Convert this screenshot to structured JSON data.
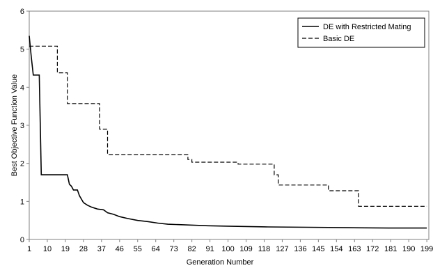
{
  "chart_data": {
    "type": "line",
    "xlabel": "Generation Number",
    "ylabel": "Best Objective Function Value",
    "xlim": [
      1,
      200
    ],
    "ylim": [
      0,
      6
    ],
    "yticks": [
      0,
      1,
      2,
      3,
      4,
      5,
      6
    ],
    "xticks": [
      1,
      10,
      19,
      28,
      37,
      46,
      55,
      64,
      73,
      82,
      91,
      100,
      109,
      118,
      127,
      136,
      145,
      154,
      163,
      172,
      181,
      190,
      199
    ],
    "grid": false,
    "legend_position": "top-right",
    "series": [
      {
        "name": "DE with Restricted Mating",
        "style": "solid",
        "color": "#000000",
        "points": [
          [
            1,
            5.35
          ],
          [
            2,
            4.8
          ],
          [
            3,
            4.32
          ],
          [
            6,
            4.32
          ],
          [
            7,
            1.7
          ],
          [
            20,
            1.7
          ],
          [
            21,
            1.45
          ],
          [
            22,
            1.4
          ],
          [
            23,
            1.3
          ],
          [
            25,
            1.3
          ],
          [
            26,
            1.15
          ],
          [
            28,
            0.97
          ],
          [
            30,
            0.9
          ],
          [
            32,
            0.85
          ],
          [
            35,
            0.8
          ],
          [
            38,
            0.78
          ],
          [
            40,
            0.7
          ],
          [
            43,
            0.66
          ],
          [
            46,
            0.6
          ],
          [
            50,
            0.55
          ],
          [
            55,
            0.5
          ],
          [
            60,
            0.47
          ],
          [
            65,
            0.43
          ],
          [
            70,
            0.4
          ],
          [
            80,
            0.38
          ],
          [
            90,
            0.36
          ],
          [
            100,
            0.35
          ],
          [
            120,
            0.33
          ],
          [
            140,
            0.32
          ],
          [
            160,
            0.31
          ],
          [
            180,
            0.3
          ],
          [
            199,
            0.3
          ]
        ]
      },
      {
        "name": "Basic DE",
        "style": "dashed",
        "color": "#000000",
        "points": [
          [
            1,
            5.08
          ],
          [
            15,
            5.08
          ],
          [
            15,
            4.38
          ],
          [
            20,
            4.38
          ],
          [
            20,
            3.57
          ],
          [
            36,
            3.57
          ],
          [
            36,
            2.9
          ],
          [
            40,
            2.9
          ],
          [
            40,
            2.23
          ],
          [
            80,
            2.23
          ],
          [
            80,
            2.1
          ],
          [
            82,
            2.1
          ],
          [
            82,
            2.03
          ],
          [
            105,
            2.03
          ],
          [
            105,
            1.98
          ],
          [
            123,
            1.98
          ],
          [
            123,
            1.7
          ],
          [
            125,
            1.7
          ],
          [
            125,
            1.43
          ],
          [
            150,
            1.43
          ],
          [
            150,
            1.28
          ],
          [
            165,
            1.28
          ],
          [
            165,
            0.87
          ],
          [
            199,
            0.87
          ]
        ]
      }
    ]
  }
}
